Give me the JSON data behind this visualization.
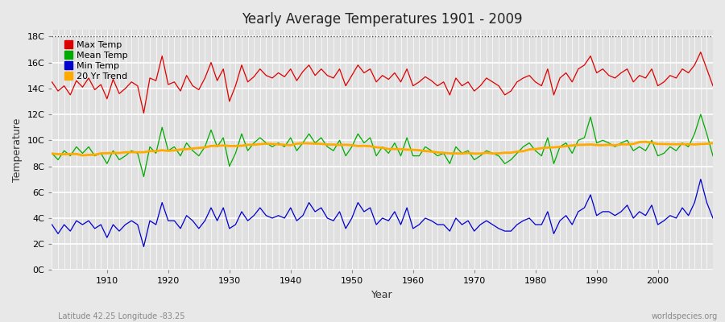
{
  "title": "Yearly Average Temperatures 1901 - 2009",
  "xlabel": "Year",
  "ylabel": "Temperature",
  "footnote_left": "Latitude 42.25 Longitude -83.25",
  "footnote_right": "worldspecies.org",
  "legend": [
    "Max Temp",
    "Mean Temp",
    "Min Temp",
    "20 Yr Trend"
  ],
  "legend_colors": [
    "#dd0000",
    "#00aa00",
    "#0000cc",
    "#ffaa00"
  ],
  "year_start": 1901,
  "year_end": 2009,
  "yticks": [
    0,
    2,
    4,
    6,
    8,
    10,
    12,
    14,
    16,
    18
  ],
  "ytick_labels": [
    "0C",
    "2C",
    "4C",
    "6C",
    "8C",
    "10C",
    "12C",
    "14C",
    "16C",
    "18C"
  ],
  "ylim": [
    0,
    18.5
  ],
  "background_color": "#e8e8e8",
  "plot_bg_color": "#e0e0e0",
  "grid_color": "#ffffff",
  "dotted_line_y": 18,
  "max_temps": [
    14.5,
    13.8,
    14.2,
    13.5,
    14.6,
    14.1,
    14.8,
    13.9,
    14.3,
    13.2,
    14.7,
    13.6,
    14.0,
    14.5,
    14.2,
    12.1,
    14.8,
    14.6,
    16.5,
    14.3,
    14.5,
    13.8,
    15.0,
    14.2,
    13.9,
    14.8,
    16.0,
    14.6,
    15.5,
    13.0,
    14.2,
    15.8,
    14.5,
    14.9,
    15.5,
    15.0,
    14.8,
    15.2,
    14.9,
    15.5,
    14.6,
    15.3,
    15.8,
    15.0,
    15.5,
    15.0,
    14.8,
    15.5,
    14.2,
    15.0,
    15.8,
    15.2,
    15.5,
    14.5,
    15.0,
    14.7,
    15.2,
    14.5,
    15.5,
    14.2,
    14.5,
    14.9,
    14.6,
    14.2,
    14.5,
    13.5,
    14.8,
    14.2,
    14.5,
    13.8,
    14.2,
    14.8,
    14.5,
    14.2,
    13.5,
    13.8,
    14.5,
    14.8,
    15.0,
    14.5,
    14.2,
    15.5,
    13.5,
    14.8,
    15.2,
    14.5,
    15.5,
    15.8,
    16.5,
    15.2,
    15.5,
    15.0,
    14.8,
    15.2,
    15.5,
    14.5,
    15.0,
    14.8,
    15.5,
    14.2,
    14.5,
    15.0,
    14.8,
    15.5,
    15.2,
    15.8,
    16.8,
    15.5,
    14.2
  ],
  "mean_temps": [
    9.0,
    8.5,
    9.2,
    8.8,
    9.5,
    9.0,
    9.5,
    8.8,
    9.0,
    8.2,
    9.2,
    8.5,
    8.8,
    9.2,
    9.0,
    7.2,
    9.5,
    9.0,
    11.0,
    9.2,
    9.5,
    8.8,
    9.8,
    9.2,
    8.8,
    9.5,
    10.8,
    9.5,
    10.2,
    8.0,
    9.0,
    10.5,
    9.2,
    9.8,
    10.2,
    9.8,
    9.5,
    9.8,
    9.5,
    10.2,
    9.2,
    9.8,
    10.5,
    9.8,
    10.2,
    9.5,
    9.2,
    10.0,
    8.8,
    9.5,
    10.5,
    9.8,
    10.2,
    8.8,
    9.5,
    9.0,
    9.8,
    8.8,
    10.2,
    8.8,
    8.8,
    9.5,
    9.2,
    8.8,
    9.0,
    8.2,
    9.5,
    9.0,
    9.2,
    8.5,
    8.8,
    9.2,
    9.0,
    8.8,
    8.2,
    8.5,
    9.0,
    9.5,
    9.8,
    9.2,
    8.8,
    10.2,
    8.2,
    9.5,
    9.8,
    9.0,
    10.0,
    10.2,
    11.8,
    9.8,
    10.0,
    9.8,
    9.5,
    9.8,
    10.0,
    9.2,
    9.5,
    9.2,
    10.0,
    8.8,
    9.0,
    9.5,
    9.2,
    9.8,
    9.5,
    10.5,
    12.0,
    10.5,
    8.8
  ],
  "min_temps": [
    3.5,
    2.8,
    3.5,
    3.0,
    3.8,
    3.5,
    3.8,
    3.2,
    3.5,
    2.5,
    3.5,
    3.0,
    3.5,
    3.8,
    3.5,
    1.8,
    3.8,
    3.5,
    5.2,
    3.8,
    3.8,
    3.2,
    4.2,
    3.8,
    3.2,
    3.8,
    4.8,
    3.8,
    4.8,
    3.2,
    3.5,
    4.5,
    3.8,
    4.2,
    4.8,
    4.2,
    4.0,
    4.2,
    4.0,
    4.8,
    3.8,
    4.2,
    5.2,
    4.5,
    4.8,
    4.0,
    3.8,
    4.5,
    3.2,
    4.0,
    5.2,
    4.5,
    4.8,
    3.5,
    4.0,
    3.8,
    4.5,
    3.5,
    4.8,
    3.2,
    3.5,
    4.0,
    3.8,
    3.5,
    3.5,
    3.0,
    4.0,
    3.5,
    3.8,
    3.0,
    3.5,
    3.8,
    3.5,
    3.2,
    3.0,
    3.0,
    3.5,
    3.8,
    4.0,
    3.5,
    3.5,
    4.5,
    2.8,
    3.8,
    4.2,
    3.5,
    4.5,
    4.8,
    5.8,
    4.2,
    4.5,
    4.5,
    4.2,
    4.5,
    5.0,
    4.0,
    4.5,
    4.2,
    5.0,
    3.5,
    3.8,
    4.2,
    4.0,
    4.8,
    4.2,
    5.2,
    7.0,
    5.2,
    4.0
  ]
}
